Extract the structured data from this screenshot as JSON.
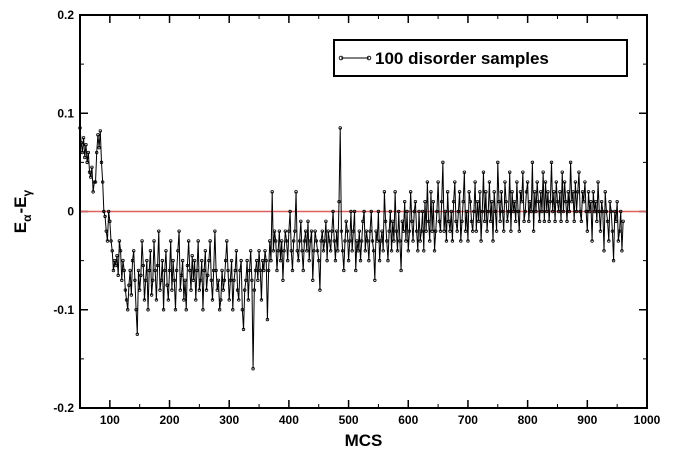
{
  "chart_data": {
    "type": "line",
    "xlabel": "MCS",
    "ylabel_main": "E",
    "ylabel_sub1": "α",
    "ylabel_mid": "-E",
    "ylabel_sub2": "γ",
    "xlim": [
      50,
      1000
    ],
    "ylim": [
      -0.2,
      0.2
    ],
    "grid": false,
    "legend_position": "top-right",
    "x_ticks": [
      100,
      200,
      300,
      400,
      500,
      600,
      700,
      800,
      900,
      1000
    ],
    "x_tick_labels": [
      "100",
      "200",
      "300",
      "400",
      "500",
      "600",
      "700",
      "800",
      "900",
      "1000"
    ],
    "y_ticks": [
      -0.2,
      -0.1,
      0,
      0.1,
      0.2
    ],
    "y_tick_labels": [
      "-0.2",
      "-0.1",
      "0",
      "0.1",
      "0.2"
    ],
    "reference_line": {
      "y": 0,
      "color": "#e06060"
    },
    "series": [
      {
        "name": "100 disorder samples",
        "color": "#000000",
        "x_start": 50,
        "x_step": 2,
        "values": [
          0.085,
          0.07,
          0.06,
          0.075,
          0.055,
          0.068,
          0.05,
          0.06,
          0.04,
          0.035,
          0.045,
          0.02,
          0.03,
          0.03,
          0.06,
          0.078,
          0.065,
          0.082,
          0.05,
          0.03,
          0.0,
          -0.005,
          -0.02,
          -0.03,
          0.0,
          -0.01,
          -0.03,
          -0.04,
          -0.06,
          -0.05,
          -0.055,
          -0.045,
          -0.065,
          -0.03,
          -0.04,
          -0.07,
          -0.05,
          -0.06,
          -0.08,
          -0.09,
          -0.1,
          -0.075,
          -0.06,
          -0.085,
          -0.05,
          -0.04,
          -0.07,
          -0.1,
          -0.125,
          -0.06,
          -0.08,
          -0.065,
          -0.03,
          -0.055,
          -0.09,
          -0.07,
          -0.05,
          -0.1,
          -0.06,
          -0.04,
          -0.085,
          -0.07,
          -0.03,
          -0.06,
          -0.09,
          -0.055,
          -0.02,
          -0.08,
          -0.07,
          -0.05,
          -0.1,
          -0.06,
          -0.04,
          -0.075,
          -0.09,
          -0.06,
          -0.03,
          -0.08,
          -0.05,
          -0.07,
          -0.1,
          -0.06,
          -0.04,
          -0.02,
          -0.08,
          -0.065,
          -0.05,
          -0.09,
          -0.07,
          -0.1,
          -0.055,
          -0.03,
          -0.06,
          -0.08,
          -0.045,
          -0.07,
          -0.05,
          -0.09,
          -0.06,
          -0.03,
          -0.08,
          -0.07,
          -0.05,
          -0.1,
          -0.06,
          -0.04,
          -0.08,
          -0.065,
          -0.05,
          -0.03,
          -0.07,
          -0.09,
          -0.06,
          -0.02,
          -0.06,
          -0.08,
          -0.07,
          -0.1,
          -0.09,
          -0.06,
          -0.08,
          -0.07,
          -0.05,
          -0.03,
          -0.06,
          -0.09,
          -0.07,
          -0.05,
          -0.1,
          -0.07,
          -0.06,
          -0.04,
          -0.08,
          -0.09,
          -0.06,
          -0.05,
          -0.1,
          -0.12,
          -0.08,
          -0.07,
          -0.05,
          -0.09,
          -0.06,
          -0.04,
          -0.07,
          -0.16,
          -0.08,
          -0.06,
          -0.05,
          -0.07,
          -0.04,
          -0.06,
          -0.09,
          -0.05,
          -0.06,
          -0.04,
          -0.05,
          -0.11,
          -0.06,
          -0.03,
          -0.05,
          0.02,
          -0.04,
          -0.02,
          -0.03,
          -0.06,
          -0.04,
          -0.02,
          -0.05,
          -0.03,
          -0.07,
          -0.04,
          -0.02,
          -0.03,
          -0.05,
          -0.02,
          0.0,
          -0.04,
          -0.06,
          -0.03,
          -0.02,
          0.02,
          -0.04,
          -0.05,
          -0.03,
          -0.01,
          -0.04,
          -0.06,
          -0.03,
          -0.02,
          -0.04,
          -0.01,
          -0.05,
          -0.03,
          -0.02,
          -0.07,
          -0.04,
          -0.02,
          -0.03,
          -0.04,
          -0.05,
          -0.08,
          -0.03,
          -0.02,
          -0.04,
          -0.03,
          -0.01,
          -0.05,
          -0.02,
          -0.03,
          -0.04,
          -0.02,
          0.0,
          -0.03,
          -0.05,
          -0.02,
          -0.04,
          0.01,
          0.085,
          -0.02,
          -0.04,
          -0.06,
          -0.03,
          -0.01,
          -0.02,
          -0.05,
          -0.03,
          0.0,
          -0.04,
          -0.02,
          0.0,
          -0.06,
          -0.03,
          -0.04,
          -0.02,
          -0.05,
          -0.03,
          -0.01,
          0.0,
          -0.04,
          -0.02,
          -0.03,
          -0.05,
          -0.02,
          0.0,
          -0.03,
          -0.04,
          -0.07,
          -0.02,
          -0.03,
          0.0,
          -0.05,
          -0.03,
          -0.02,
          -0.04,
          0.02,
          -0.01,
          -0.03,
          -0.05,
          -0.02,
          0.0,
          -0.04,
          -0.01,
          -0.03,
          0.02,
          -0.02,
          -0.04,
          0.0,
          -0.03,
          -0.06,
          -0.01,
          -0.02,
          0.01,
          -0.03,
          0.0,
          -0.04,
          -0.02,
          0.02,
          -0.01,
          -0.03,
          0.0,
          0.01,
          -0.02,
          -0.04,
          0.0,
          -0.03,
          -0.02,
          0.0,
          -0.04,
          0.01,
          -0.02,
          0.03,
          -0.01,
          -0.03,
          0.02,
          -0.02,
          0.01,
          -0.04,
          -0.02,
          0.0,
          0.03,
          -0.01,
          -0.02,
          0.01,
          0.05,
          -0.02,
          0.0,
          -0.03,
          0.02,
          -0.01,
          -0.02,
          0.0,
          -0.03,
          0.01,
          0.03,
          -0.01,
          -0.02,
          0.0,
          0.02,
          -0.03,
          -0.01,
          0.01,
          0.04,
          -0.02,
          0.0,
          -0.03,
          0.02,
          0.01,
          -0.01,
          -0.02,
          0.0,
          0.03,
          -0.02,
          0.01,
          -0.01,
          0.02,
          -0.03,
          0.0,
          0.04,
          -0.01,
          0.02,
          -0.02,
          0.0,
          0.03,
          -0.01,
          0.01,
          -0.03,
          0.02,
          0.0,
          -0.02,
          0.05,
          0.01,
          -0.01,
          0.02,
          0.0,
          -0.02,
          0.03,
          0.01,
          -0.01,
          0.0,
          0.04,
          -0.02,
          0.02,
          0.0,
          0.01,
          -0.01,
          0.03,
          0.0,
          -0.02,
          0.02,
          0.01,
          0.04,
          -0.01,
          0.0,
          0.02,
          0.03,
          -0.01,
          0.01,
          0.0,
          0.05,
          -0.02,
          0.02,
          0.0,
          0.03,
          0.01,
          -0.01,
          0.02,
          0.0,
          0.04,
          -0.01,
          0.03,
          0.0,
          0.02,
          -0.01,
          0.01,
          0.05,
          0.0,
          0.02,
          -0.01,
          0.03,
          0.01,
          0.0,
          0.02,
          -0.01,
          0.04,
          0.0,
          0.03,
          0.01,
          -0.01,
          0.02,
          0.0,
          0.05,
          0.01,
          0.02,
          -0.01,
          0.03,
          0.0,
          0.02,
          0.04,
          0.0,
          -0.01,
          0.02,
          0.01,
          0.03,
          0.0,
          -0.02,
          0.02,
          0.0,
          0.01,
          -0.03,
          0.02,
          0.0,
          0.01,
          -0.01,
          0.03,
          0.0,
          -0.02,
          0.01,
          0.0,
          -0.04,
          0.02,
          0.0,
          -0.01,
          -0.03,
          0.01,
          0.0,
          -0.02,
          -0.05,
          0.0,
          -0.01,
          0.01,
          -0.03,
          -0.02,
          0.0,
          -0.04,
          -0.01
        ]
      }
    ]
  }
}
